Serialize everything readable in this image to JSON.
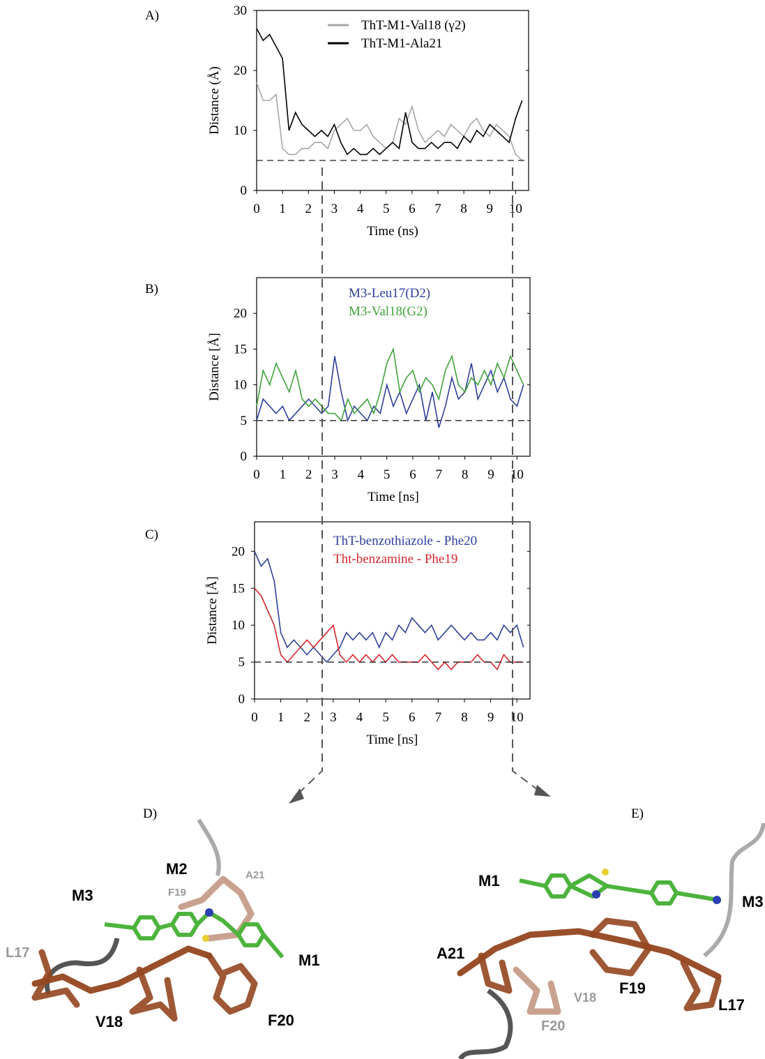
{
  "chart_data": [
    {
      "type": "line",
      "panel_label": "A)",
      "xlabel": "Time (ns)",
      "ylabel": "Distance (Å)",
      "xlim": [
        0,
        10.5
      ],
      "xticks": [
        0,
        1,
        2,
        3,
        4,
        5,
        6,
        7,
        8,
        9,
        10
      ],
      "ylim": [
        0,
        30
      ],
      "yticks": [
        0,
        10,
        20,
        30
      ],
      "reference_line": 5,
      "legend_swatch": "line",
      "x": [
        0,
        0.25,
        0.5,
        0.75,
        1,
        1.25,
        1.5,
        1.75,
        2,
        2.25,
        2.5,
        2.75,
        3,
        3.25,
        3.5,
        3.75,
        4,
        4.25,
        4.5,
        4.75,
        5,
        5.25,
        5.5,
        5.75,
        6,
        6.25,
        6.5,
        6.75,
        7,
        7.25,
        7.5,
        7.75,
        8,
        8.25,
        8.5,
        8.75,
        9,
        9.25,
        9.5,
        9.75,
        10,
        10.25
      ],
      "series": [
        {
          "name": "ThT-M1-Val18 (γ2)",
          "color": "#a6a6a6",
          "values": [
            18,
            15,
            15,
            16,
            7,
            6,
            6,
            7,
            7,
            8,
            8,
            7,
            10,
            11,
            12,
            10,
            10,
            11,
            9,
            8,
            7,
            8,
            12,
            11,
            14,
            10,
            8,
            9,
            10,
            9,
            11,
            10,
            9,
            11,
            12,
            10,
            9,
            11,
            10,
            9,
            6,
            5
          ]
        },
        {
          "name": "ThT-M1-Ala21",
          "color": "#000000",
          "values": [
            27,
            25,
            26,
            24,
            22,
            10,
            13,
            11,
            10,
            9,
            10,
            9,
            11,
            8,
            6,
            7,
            6,
            6,
            7,
            6,
            7,
            8,
            7,
            13,
            8,
            7,
            7,
            8,
            7,
            8,
            8,
            7,
            9,
            8,
            10,
            9,
            11,
            10,
            9,
            8,
            12,
            15
          ]
        }
      ]
    },
    {
      "type": "line",
      "panel_label": "B)",
      "xlabel": "Time [ns]",
      "ylabel": "Distance [Å]",
      "xlim": [
        0,
        10.5
      ],
      "xticks": [
        0,
        1,
        2,
        3,
        4,
        5,
        6,
        7,
        8,
        9,
        10
      ],
      "ylim": [
        0,
        25
      ],
      "yticks": [
        0,
        5,
        10,
        15,
        20
      ],
      "reference_line": 5,
      "legend_swatch": "text",
      "x": [
        0,
        0.25,
        0.5,
        0.75,
        1,
        1.25,
        1.5,
        1.75,
        2,
        2.25,
        2.5,
        2.75,
        3,
        3.25,
        3.5,
        3.75,
        4,
        4.25,
        4.5,
        4.75,
        5,
        5.25,
        5.5,
        5.75,
        6,
        6.25,
        6.5,
        6.75,
        7,
        7.25,
        7.5,
        7.75,
        8,
        8.25,
        8.5,
        8.75,
        9,
        9.25,
        9.5,
        9.75,
        10,
        10.25
      ],
      "series": [
        {
          "name": "M3-Leu17(D2)",
          "color": "#2e3f9a",
          "values": [
            5,
            8,
            7,
            6,
            7,
            5,
            6,
            7,
            8,
            7,
            6,
            7,
            14,
            9,
            5,
            7,
            6,
            5,
            7,
            6,
            10,
            7,
            9,
            6,
            8,
            10,
            5,
            9,
            4,
            7,
            11,
            8,
            9,
            13,
            8,
            10,
            12,
            9,
            11,
            8,
            7,
            10
          ]
        },
        {
          "name": "M3-Val18(G2)",
          "color": "#3fa33a",
          "values": [
            7,
            12,
            10,
            13,
            11,
            9,
            12,
            8,
            7,
            8,
            7,
            6,
            6,
            5,
            8,
            6,
            7,
            8,
            6,
            9,
            13,
            15,
            9,
            11,
            12,
            9,
            11,
            10,
            8,
            12,
            14,
            10,
            9,
            11,
            10,
            12,
            10,
            13,
            11,
            14,
            12,
            10
          ]
        }
      ]
    },
    {
      "type": "line",
      "panel_label": "C)",
      "xlabel": "Time [ns]",
      "ylabel": "Distance [Å]",
      "xlim": [
        0,
        10.5
      ],
      "xticks": [
        0,
        1,
        2,
        3,
        4,
        5,
        6,
        7,
        8,
        9,
        10
      ],
      "ylim": [
        0,
        24
      ],
      "yticks": [
        0,
        5,
        10,
        15,
        20
      ],
      "reference_line": 5,
      "legend_swatch": "text",
      "x": [
        0,
        0.25,
        0.5,
        0.75,
        1,
        1.25,
        1.5,
        1.75,
        2,
        2.25,
        2.5,
        2.75,
        3,
        3.25,
        3.5,
        3.75,
        4,
        4.25,
        4.5,
        4.75,
        5,
        5.25,
        5.5,
        5.75,
        6,
        6.25,
        6.5,
        6.75,
        7,
        7.25,
        7.5,
        7.75,
        8,
        8.25,
        8.5,
        8.75,
        9,
        9.25,
        9.5,
        9.75,
        10,
        10.25
      ],
      "series": [
        {
          "name": "ThT-benzothiazole - Phe20",
          "color": "#2e3f9a",
          "values": [
            20,
            18,
            19,
            16,
            9,
            7,
            8,
            7,
            6,
            7,
            6,
            5,
            6,
            7,
            9,
            8,
            9,
            8,
            9,
            7,
            9,
            8,
            10,
            9,
            11,
            10,
            9,
            10,
            8,
            9,
            10,
            9,
            8,
            9,
            8,
            8,
            9,
            8,
            10,
            9,
            10,
            7
          ]
        },
        {
          "name": "Tht-benzamine - Phe19",
          "color": "#d7262b",
          "values": [
            15,
            14,
            12,
            10,
            6,
            5,
            6,
            7,
            8,
            7,
            8,
            9,
            10,
            6,
            5,
            6,
            5,
            6,
            5,
            6,
            5,
            6,
            5,
            5,
            5,
            5,
            6,
            5,
            4,
            5,
            4,
            5,
            5,
            5,
            6,
            5,
            5,
            4,
            6,
            5,
            5,
            5
          ]
        }
      ]
    }
  ],
  "structures": [
    {
      "panel_label": "D)",
      "labels": [
        "M2",
        "A21",
        "M3",
        "F19",
        "L17",
        "M1",
        "V18",
        "F20"
      ]
    },
    {
      "panel_label": "E)",
      "labels": [
        "M1",
        "M3",
        "A21",
        "F19",
        "V18",
        "L17",
        "F20"
      ]
    }
  ]
}
